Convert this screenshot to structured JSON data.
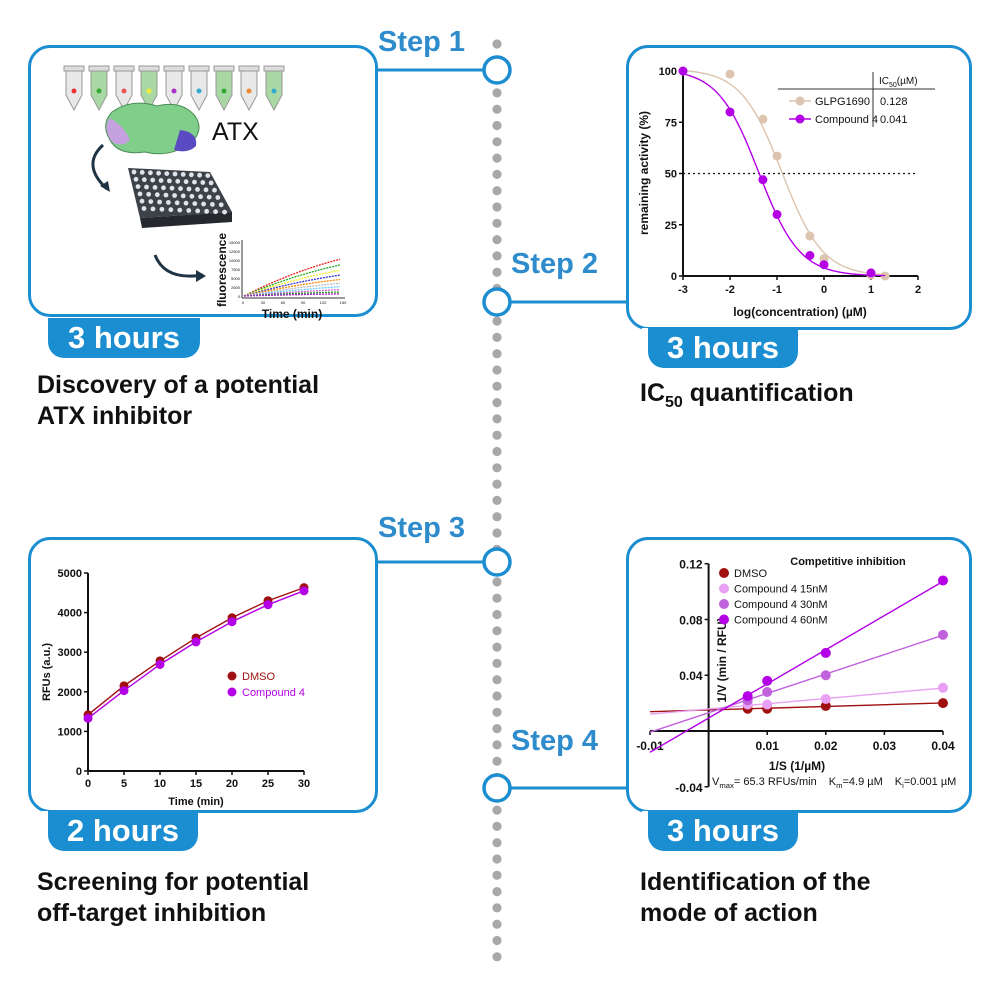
{
  "colors": {
    "accent": "#1b8dd1",
    "step_text": "#2f8ccc",
    "dots": "#a8a8a8",
    "dmso": "#a01010",
    "compound4": "#b400e6",
    "glpg": "#dcc4ae",
    "c15": "#e7a0f2",
    "c30": "#c062dc",
    "c60": "#b400e6"
  },
  "steps": [
    {
      "label": "Step 1",
      "duration": "3 hours",
      "caption_lines": [
        "Discovery of a potential",
        "ATX inhibitor"
      ]
    },
    {
      "label": "Step 2",
      "duration": "3 hours",
      "caption_pre": "IC",
      "caption_sub": "50",
      "caption_post": " quantification"
    },
    {
      "label": "Step 3",
      "duration": "2 hours",
      "caption_lines": [
        "Screening for potential",
        "off-target inhibition"
      ]
    },
    {
      "label": "Step 4",
      "duration": "3 hours",
      "caption_lines": [
        "Identification of the",
        "mode of action"
      ]
    }
  ],
  "illustration": {
    "protein_label": "ATX",
    "mini_chart_ylabel": "fluorescence",
    "mini_chart_xlabel": "Time (min)",
    "mini_chart_yticks": [
      "15000",
      "12500",
      "10000",
      "7500",
      "5000",
      "2500",
      "0"
    ],
    "mini_chart_xticks": [
      "0",
      "30",
      "60",
      "90",
      "120",
      "150"
    ]
  },
  "chart_data": [
    {
      "type": "scatter",
      "id": "ic50",
      "xlabel": "log(concentration) (µM)",
      "ylabel": "remaining activity (%)",
      "xlim": [
        -3,
        2
      ],
      "ylim": [
        0,
        100
      ],
      "xticks": [
        -3,
        -2,
        -1,
        0,
        1,
        2
      ],
      "yticks": [
        0,
        25,
        50,
        75,
        100
      ],
      "reference_line": 50,
      "table_header_pre": "IC",
      "table_header_sub": "50",
      "table_header_post": "(µM)",
      "series": [
        {
          "name": "GLPG1690",
          "ic50": "0.128",
          "color": "#dcc4ae",
          "x": [
            -3,
            -2,
            -1.3,
            -1,
            -0.3,
            0,
            1,
            1.3
          ],
          "y": [
            100,
            98.5,
            76.5,
            58.5,
            19.5,
            8.5,
            0.5,
            0
          ]
        },
        {
          "name": "Compound 4",
          "ic50": "0.041",
          "color": "#b400e6",
          "x": [
            -3,
            -2,
            -1.3,
            -1,
            -0.3,
            0,
            1
          ],
          "y": [
            100,
            80,
            47,
            30,
            10,
            5.5,
            1.5
          ]
        }
      ]
    },
    {
      "type": "line",
      "id": "offtarget",
      "xlabel": "Time (min)",
      "ylabel": "RFUs (a.u.)",
      "xlim": [
        0,
        30
      ],
      "ylim": [
        0,
        5000
      ],
      "xticks": [
        0,
        5,
        10,
        15,
        20,
        25,
        30
      ],
      "yticks": [
        0,
        1000,
        2000,
        3000,
        4000,
        5000
      ],
      "legend": "center-right",
      "series": [
        {
          "name": "DMSO",
          "color": "#a01010",
          "x": [
            0,
            5,
            10,
            15,
            20,
            25,
            30
          ],
          "y": [
            1420,
            2150,
            2780,
            3360,
            3870,
            4300,
            4630
          ]
        },
        {
          "name": "Compound 4",
          "color": "#b400e6",
          "x": [
            0,
            5,
            10,
            15,
            20,
            25,
            30
          ],
          "y": [
            1330,
            2030,
            2690,
            3260,
            3770,
            4200,
            4550
          ]
        }
      ]
    },
    {
      "type": "scatter",
      "id": "lineweaver",
      "title": "Competitive inhibition",
      "xlabel": "1/S (1/µM)",
      "ylabel": "1/V (min / RFU)",
      "xlim": [
        -0.01,
        0.04
      ],
      "ylim": [
        -0.04,
        0.12
      ],
      "xticks": [
        -0.01,
        0.01,
        0.02,
        0.03,
        0.04
      ],
      "yticks": [
        -0.04,
        0.04,
        0.08,
        0.12
      ],
      "legend": "top-left",
      "annotation": [
        {
          "sym": "V",
          "sub": "max",
          "val": "= 65.3 RFUs/min"
        },
        {
          "sym": "K",
          "sub": "m",
          "val": "=4.9 µM"
        },
        {
          "sym": "K",
          "sub": "i",
          "val": "=0.001 µM"
        }
      ],
      "series": [
        {
          "name": "DMSO",
          "color": "#a01010",
          "x": [
            0.00667,
            0.01,
            0.02,
            0.04
          ],
          "y": [
            0.016,
            0.016,
            0.018,
            0.02
          ]
        },
        {
          "name": "Compound 4 15nM",
          "color": "#e7a0f2",
          "x": [
            0.00667,
            0.01,
            0.02,
            0.04
          ],
          "y": [
            0.019,
            0.019,
            0.023,
            0.031
          ]
        },
        {
          "name": "Compound 4 30nM",
          "color": "#c062dc",
          "x": [
            0.00667,
            0.01,
            0.02,
            0.04
          ],
          "y": [
            0.022,
            0.028,
            0.04,
            0.069
          ]
        },
        {
          "name": "Compound 4 60nM",
          "color": "#b400e6",
          "x": [
            0.00667,
            0.01,
            0.02,
            0.04
          ],
          "y": [
            0.025,
            0.036,
            0.056,
            0.108
          ]
        }
      ]
    }
  ]
}
